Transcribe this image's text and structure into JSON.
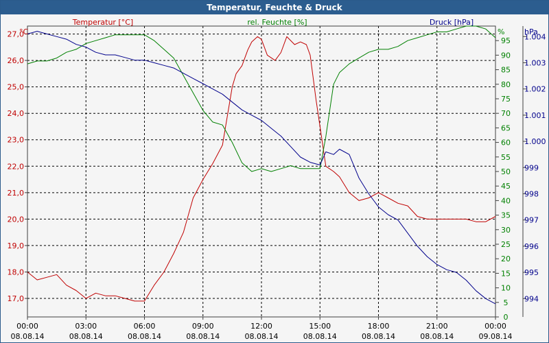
{
  "window": {
    "title": "Temperatur, Feuchte & Druck"
  },
  "colors": {
    "temperature": "#c00000",
    "humidity": "#008000",
    "pressure": "#00008b",
    "grid": "#000000",
    "axis": "#404040"
  },
  "chart_data": {
    "type": "line",
    "title": "Temperatur, Feuchte & Druck",
    "grid": true,
    "x_range": [
      "08.08.14 00:00",
      "09.08.14 00:00"
    ],
    "x_ticks": [
      {
        "time": "00:00",
        "date": "08.08.14"
      },
      {
        "time": "03:00",
        "date": "08.08.14"
      },
      {
        "time": "06:00",
        "date": "08.08.14"
      },
      {
        "time": "09:00",
        "date": "08.08.14"
      },
      {
        "time": "12:00",
        "date": "08.08.14"
      },
      {
        "time": "15:00",
        "date": "08.08.14"
      },
      {
        "time": "18:00",
        "date": "08.08.14"
      },
      {
        "time": "21:00",
        "date": "08.08.14"
      },
      {
        "time": "00:00",
        "date": "09.08.14"
      }
    ],
    "axes": {
      "temperature": {
        "label": "Temperatur [°C]",
        "unit": "°C",
        "range": [
          16.3,
          27.3
        ],
        "ticks": [
          "17,0",
          "18,0",
          "19,0",
          "20,0",
          "21,0",
          "22,0",
          "23,0",
          "24,0",
          "25,0",
          "26,0",
          "27,0"
        ]
      },
      "humidity": {
        "label": "rel. Feuchte [%]",
        "unit": "%",
        "range": [
          0,
          100
        ],
        "ticks": [
          "0",
          "5",
          "10",
          "15",
          "20",
          "25",
          "30",
          "35",
          "40",
          "45",
          "50",
          "55",
          "60",
          "65",
          "70",
          "75",
          "80",
          "85",
          "90",
          "95"
        ]
      },
      "pressure": {
        "label": "Druck [hPa]",
        "unit": "hPa",
        "range": [
          993.3,
          1004.4
        ],
        "ticks": [
          "994",
          "995",
          "996",
          "997",
          "998",
          "999",
          "1.000",
          "1.001",
          "1.002",
          "1.003",
          "1.004"
        ]
      }
    },
    "series": [
      {
        "name": "Temperatur [°C]",
        "axis": "temperature",
        "x_hours": [
          0,
          0.5,
          1,
          1.5,
          2,
          2.5,
          3,
          3.5,
          4,
          4.5,
          5,
          5.5,
          6,
          6.5,
          7,
          7.5,
          8,
          8.5,
          9,
          9.5,
          10,
          10.5,
          10.7,
          11,
          11.3,
          11.5,
          11.8,
          12,
          12.3,
          12.7,
          13,
          13.3,
          13.7,
          14,
          14.3,
          14.5,
          14.8,
          15,
          15.3,
          15.7,
          16,
          16.5,
          17,
          17.5,
          18,
          18.5,
          19,
          19.5,
          20,
          20.5,
          21,
          21.5,
          22,
          22.5,
          23,
          23.5,
          24
        ],
        "values": [
          18.0,
          17.7,
          17.8,
          17.9,
          17.5,
          17.3,
          17.0,
          17.2,
          17.1,
          17.1,
          17.0,
          16.9,
          16.9,
          17.5,
          18.0,
          18.7,
          19.5,
          20.8,
          21.5,
          22.1,
          22.8,
          25.0,
          25.5,
          25.8,
          26.4,
          26.7,
          26.9,
          26.8,
          26.2,
          26.0,
          26.3,
          26.9,
          26.6,
          26.7,
          26.6,
          26.2,
          24.5,
          23.5,
          22.0,
          21.8,
          21.6,
          21.0,
          20.7,
          20.8,
          21.0,
          20.8,
          20.6,
          20.5,
          20.1,
          20.0,
          20.0,
          20.0,
          20.0,
          20.0,
          19.9,
          19.9,
          20.1
        ]
      },
      {
        "name": "rel. Feuchte [%]",
        "axis": "humidity",
        "x_hours": [
          0,
          0.5,
          1,
          1.5,
          2,
          2.5,
          3,
          3.5,
          4,
          4.5,
          5,
          5.5,
          6,
          6.5,
          7,
          7.5,
          8,
          8.5,
          9,
          9.5,
          10,
          10.5,
          11,
          11.5,
          12,
          12.5,
          13,
          13.5,
          14,
          14.5,
          15,
          15.3,
          15.7,
          16,
          16.5,
          17,
          17.5,
          18,
          18.5,
          19,
          19.5,
          20,
          20.5,
          21,
          21.5,
          22,
          22.5,
          23,
          23.5,
          24
        ],
        "values": [
          87,
          88,
          88,
          89,
          91,
          92,
          94,
          95,
          96,
          97,
          97,
          97,
          97,
          95,
          92,
          89,
          83,
          77,
          71,
          67,
          66,
          60,
          53,
          50,
          51,
          50,
          51,
          52,
          51,
          51,
          51,
          62,
          80,
          84,
          87,
          89,
          91,
          92,
          92,
          93,
          95,
          96,
          97,
          98,
          98,
          99,
          100,
          100,
          99,
          96
        ]
      },
      {
        "name": "Druck [hPa]",
        "axis": "pressure",
        "x_hours": [
          0,
          0.5,
          1,
          1.5,
          2,
          2.5,
          3,
          3.5,
          4,
          4.5,
          5,
          5.5,
          6,
          6.5,
          7,
          7.5,
          8,
          8.5,
          9,
          9.5,
          10,
          10.5,
          11,
          11.5,
          12,
          12.5,
          13,
          13.5,
          14,
          14.5,
          15,
          15.3,
          15.7,
          16,
          16.5,
          17,
          17.5,
          18,
          18.5,
          19,
          19.5,
          20,
          20.5,
          21,
          21.5,
          22,
          22.5,
          23,
          23.5,
          24
        ],
        "values": [
          1004.1,
          1004.2,
          1004.1,
          1004.0,
          1003.9,
          1003.7,
          1003.6,
          1003.4,
          1003.3,
          1003.3,
          1003.2,
          1003.1,
          1003.1,
          1003.0,
          1002.9,
          1002.8,
          1002.6,
          1002.4,
          1002.2,
          1002.0,
          1001.8,
          1001.5,
          1001.2,
          1001.0,
          1000.8,
          1000.5,
          1000.2,
          999.8,
          999.4,
          999.2,
          999.1,
          999.6,
          999.5,
          999.7,
          999.5,
          998.6,
          998.0,
          997.5,
          997.2,
          997.0,
          996.5,
          996.0,
          995.6,
          995.3,
          995.1,
          995.0,
          994.7,
          994.3,
          994.0,
          993.8
        ]
      }
    ]
  }
}
